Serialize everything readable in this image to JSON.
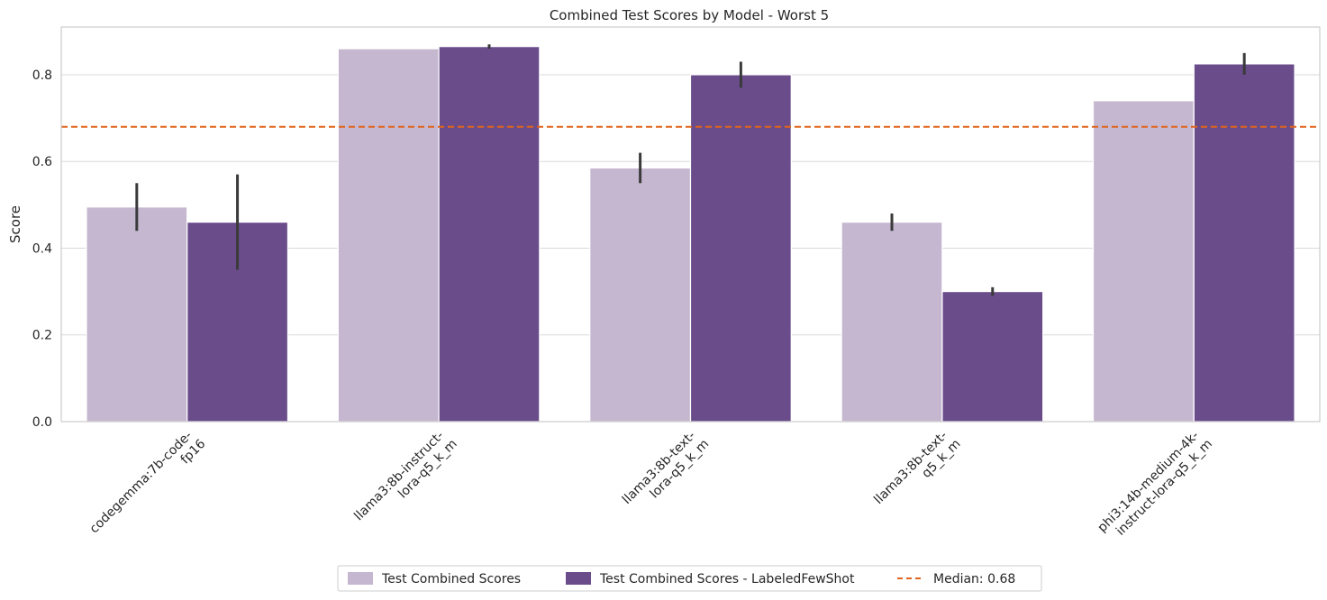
{
  "chart_data": {
    "type": "bar",
    "title": "Combined Test Scores by Model - Worst 5",
    "xlabel": "",
    "ylabel": "Score",
    "ylim": [
      0,
      0.91
    ],
    "yticks": [
      "0.0",
      "0.2",
      "0.4",
      "0.6",
      "0.8"
    ],
    "categories": [
      [
        "codegemma:7b-code-",
        "fp16"
      ],
      [
        "llama3:8b-instruct-",
        "lora-q5_k_m"
      ],
      [
        "llama3:8b-text-",
        "lora-q5_k_m"
      ],
      [
        "llama3:8b-text-",
        "q5_k_m"
      ],
      [
        "phi3:14b-medium-4k-",
        "instruct-lora-q5_k_m"
      ]
    ],
    "series": [
      {
        "name": "Test Combined Scores",
        "color": "#c5b7d0",
        "values": [
          0.495,
          0.86,
          0.585,
          0.46,
          0.74
        ],
        "err_low": [
          0.44,
          0.86,
          0.55,
          0.44,
          0.74
        ],
        "err_high": [
          0.55,
          0.86,
          0.62,
          0.48,
          0.74
        ]
      },
      {
        "name": "Test Combined Scores - LabeledFewShot",
        "color": "#6a4c8b",
        "values": [
          0.46,
          0.865,
          0.8,
          0.3,
          0.825
        ],
        "err_low": [
          0.35,
          0.86,
          0.77,
          0.29,
          0.8
        ],
        "err_high": [
          0.57,
          0.87,
          0.83,
          0.31,
          0.85
        ]
      }
    ],
    "median": {
      "value": 0.68,
      "label": "Median: 0.68",
      "color": "#e0641c"
    },
    "grid": true,
    "legend_position": "bottom-center"
  }
}
